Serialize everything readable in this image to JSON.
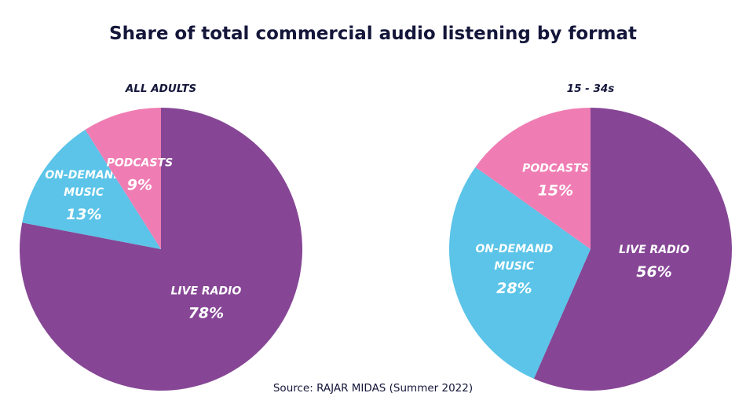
{
  "chart_data": {
    "type": "pie",
    "title": "Share of total commercial audio listening by format",
    "source": "Source: RAJAR MIDAS (Summer 2022)",
    "colors": {
      "live_radio": "#864695",
      "on_demand_music": "#5bc4e8",
      "podcasts": "#ef7db3",
      "text_dark": "#14163a"
    },
    "pies": [
      {
        "title": "ALL ADULTS",
        "slices": [
          {
            "label": [
              "LIVE RADIO"
            ],
            "value": 78,
            "display": "78%",
            "color": "#864695"
          },
          {
            "label": [
              "ON-DEMAND",
              "MUSIC"
            ],
            "value": 13,
            "display": "13%",
            "color": "#5bc4e8"
          },
          {
            "label": [
              "PODCASTS"
            ],
            "value": 9,
            "display": "9%",
            "color": "#ef7db3"
          }
        ]
      },
      {
        "title": "15 - 34s",
        "slices": [
          {
            "label": [
              "LIVE RADIO"
            ],
            "value": 56,
            "display": "56%",
            "color": "#864695"
          },
          {
            "label": [
              "ON-DEMAND",
              "MUSIC"
            ],
            "value": 28,
            "display": "28%",
            "color": "#5bc4e8"
          },
          {
            "label": [
              "PODCASTS"
            ],
            "value": 15,
            "display": "15%",
            "color": "#ef7db3"
          }
        ]
      }
    ]
  }
}
